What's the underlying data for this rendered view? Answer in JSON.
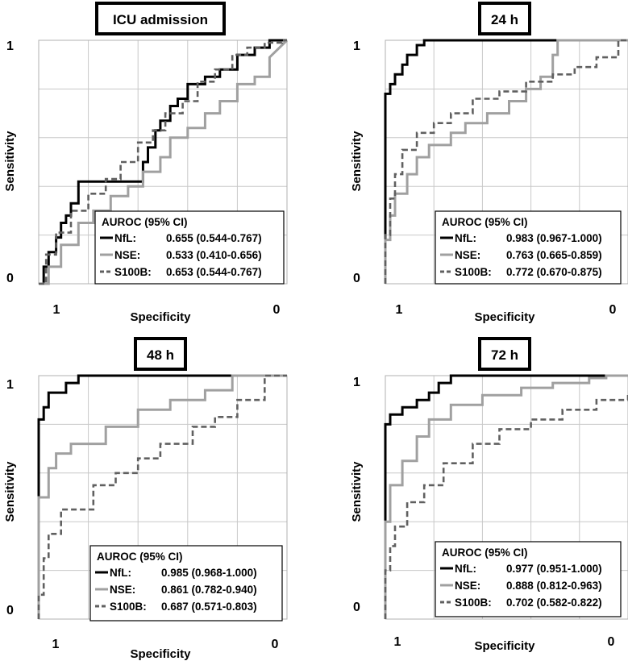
{
  "colors": {
    "nfl": "#000000",
    "nse": "#a0a0a0",
    "s100b": "#606060",
    "grid": "#c8c8c8"
  },
  "chart_data": [
    {
      "type": "line",
      "title": "ICU admission",
      "xlabel": "Specificity",
      "ylabel": "Sensitivity",
      "x_tick_labels": [
        "1",
        "0"
      ],
      "y_tick_labels": [
        "1",
        "0"
      ],
      "xlim": [
        1,
        0
      ],
      "ylim": [
        0,
        1
      ],
      "legend": {
        "title": "AUROC (95% CI)",
        "entries": [
          {
            "label": "NfL:",
            "value": "0.655 (0.544-0.767)"
          },
          {
            "label": "NSE:",
            "value": "0.533 (0.410-0.656)"
          },
          {
            "label": "S100B:",
            "value": "0.653 (0.544-0.767)"
          }
        ]
      },
      "series": [
        {
          "name": "NfL",
          "style": "solid",
          "fpr": [
            0,
            0.02,
            0.02,
            0.04,
            0.04,
            0.07,
            0.07,
            0.09,
            0.09,
            0.11,
            0.11,
            0.13,
            0.13,
            0.16,
            0.16,
            0.42,
            0.42,
            0.44,
            0.44,
            0.47,
            0.47,
            0.49,
            0.49,
            0.53,
            0.53,
            0.56,
            0.56,
            0.6,
            0.6,
            0.67,
            0.67,
            0.73,
            0.73,
            0.8,
            0.8,
            0.87,
            0.87,
            0.93,
            0.93,
            1.0
          ],
          "tpr": [
            0,
            0,
            0.07,
            0.07,
            0.13,
            0.13,
            0.19,
            0.19,
            0.25,
            0.25,
            0.28,
            0.28,
            0.33,
            0.33,
            0.42,
            0.42,
            0.5,
            0.5,
            0.56,
            0.56,
            0.63,
            0.63,
            0.67,
            0.67,
            0.73,
            0.73,
            0.76,
            0.76,
            0.82,
            0.82,
            0.85,
            0.85,
            0.88,
            0.88,
            0.94,
            0.94,
            0.97,
            0.97,
            1.0,
            1.0
          ]
        },
        {
          "name": "NSE",
          "style": "solid",
          "fpr": [
            0,
            0.04,
            0.04,
            0.09,
            0.09,
            0.16,
            0.16,
            0.22,
            0.22,
            0.29,
            0.29,
            0.36,
            0.36,
            0.42,
            0.42,
            0.49,
            0.49,
            0.53,
            0.53,
            0.6,
            0.6,
            0.67,
            0.67,
            0.73,
            0.73,
            0.8,
            0.8,
            0.87,
            0.87,
            0.93,
            0.93,
            1.0
          ],
          "tpr": [
            0,
            0,
            0.07,
            0.07,
            0.16,
            0.16,
            0.25,
            0.25,
            0.3,
            0.3,
            0.36,
            0.36,
            0.4,
            0.4,
            0.46,
            0.46,
            0.52,
            0.52,
            0.6,
            0.6,
            0.64,
            0.64,
            0.7,
            0.7,
            0.75,
            0.75,
            0.82,
            0.82,
            0.85,
            0.85,
            0.93,
            1.0
          ]
        },
        {
          "name": "S100B",
          "style": "dashed",
          "fpr": [
            0,
            0.03,
            0.03,
            0.07,
            0.07,
            0.13,
            0.13,
            0.2,
            0.2,
            0.27,
            0.27,
            0.33,
            0.33,
            0.4,
            0.4,
            0.46,
            0.46,
            0.51,
            0.51,
            0.58,
            0.58,
            0.64,
            0.64,
            0.71,
            0.71,
            0.78,
            0.78,
            0.84,
            0.84,
            0.91,
            0.91,
            0.98,
            0.98,
            1.0
          ],
          "tpr": [
            0,
            0,
            0.12,
            0.12,
            0.21,
            0.21,
            0.3,
            0.3,
            0.37,
            0.37,
            0.43,
            0.43,
            0.5,
            0.5,
            0.58,
            0.58,
            0.63,
            0.63,
            0.7,
            0.7,
            0.75,
            0.75,
            0.83,
            0.83,
            0.88,
            0.88,
            0.94,
            0.94,
            0.97,
            0.97,
            0.99,
            0.99,
            1.0,
            1.0
          ]
        }
      ]
    },
    {
      "type": "line",
      "title": "24 h",
      "xlabel": "Specificity",
      "ylabel": "Sensitivity",
      "x_tick_labels": [
        "1",
        "0"
      ],
      "y_tick_labels": [
        "1",
        "0"
      ],
      "xlim": [
        1,
        0
      ],
      "ylim": [
        0,
        1
      ],
      "legend": {
        "title": "AUROC (95% CI)",
        "entries": [
          {
            "label": "NfL:",
            "value": "0.983 (0.967-1.000)"
          },
          {
            "label": "NSE:",
            "value": "0.763 (0.665-0.859)"
          },
          {
            "label": "S100B:",
            "value": "0.772 (0.670-0.875)"
          }
        ]
      },
      "series": [
        {
          "name": "NfL",
          "style": "solid",
          "fpr": [
            0,
            0,
            0.02,
            0.02,
            0.04,
            0.04,
            0.07,
            0.07,
            0.09,
            0.09,
            0.13,
            0.13,
            0.16,
            0.16,
            1.0
          ],
          "tpr": [
            0,
            0.78,
            0.78,
            0.82,
            0.82,
            0.86,
            0.86,
            0.9,
            0.9,
            0.94,
            0.94,
            0.98,
            0.98,
            1.0,
            1.0
          ]
        },
        {
          "name": "NSE",
          "style": "solid",
          "fpr": [
            0,
            0,
            0.02,
            0.02,
            0.04,
            0.04,
            0.09,
            0.09,
            0.13,
            0.13,
            0.18,
            0.18,
            0.27,
            0.27,
            0.33,
            0.33,
            0.42,
            0.42,
            0.51,
            0.51,
            0.58,
            0.58,
            0.64,
            0.64,
            0.69,
            0.69,
            0.71,
            0.71,
            1.0
          ],
          "tpr": [
            0,
            0.18,
            0.18,
            0.28,
            0.28,
            0.37,
            0.37,
            0.45,
            0.45,
            0.52,
            0.52,
            0.57,
            0.57,
            0.62,
            0.62,
            0.66,
            0.66,
            0.7,
            0.7,
            0.75,
            0.75,
            0.8,
            0.8,
            0.85,
            0.85,
            0.94,
            0.94,
            1.0,
            1.0
          ]
        },
        {
          "name": "S100B",
          "style": "dashed",
          "fpr": [
            0,
            0,
            0.02,
            0.02,
            0.04,
            0.04,
            0.07,
            0.07,
            0.13,
            0.13,
            0.2,
            0.2,
            0.27,
            0.27,
            0.36,
            0.36,
            0.47,
            0.47,
            0.58,
            0.58,
            0.69,
            0.69,
            0.78,
            0.78,
            0.87,
            0.87,
            0.96,
            0.96,
            1.0
          ],
          "tpr": [
            0,
            0.2,
            0.2,
            0.35,
            0.35,
            0.45,
            0.45,
            0.55,
            0.55,
            0.62,
            0.62,
            0.66,
            0.66,
            0.7,
            0.7,
            0.76,
            0.76,
            0.79,
            0.79,
            0.83,
            0.83,
            0.86,
            0.86,
            0.89,
            0.89,
            0.93,
            0.93,
            1.0,
            1.0
          ]
        }
      ]
    },
    {
      "type": "line",
      "title": "48 h",
      "xlabel": "Specificity",
      "ylabel": "Sensitivity",
      "x_tick_labels": [
        "1",
        "0"
      ],
      "y_tick_labels": [
        "1",
        "0"
      ],
      "xlim": [
        1,
        0
      ],
      "ylim": [
        0,
        1
      ],
      "legend": {
        "title": "AUROC (95% CI)",
        "entries": [
          {
            "label": "NfL:",
            "value": "0.985 (0.968-1.000)"
          },
          {
            "label": "NSE:",
            "value": "0.861 (0.782-0.940)"
          },
          {
            "label": "S100B:",
            "value": "0.687 (0.571-0.803)"
          }
        ]
      },
      "series": [
        {
          "name": "NfL",
          "style": "solid",
          "fpr": [
            0,
            0,
            0.02,
            0.02,
            0.04,
            0.04,
            0.11,
            0.11,
            0.16,
            0.16,
            1.0
          ],
          "tpr": [
            0,
            0.82,
            0.82,
            0.87,
            0.87,
            0.93,
            0.93,
            0.97,
            0.97,
            1.0,
            1.0
          ]
        },
        {
          "name": "NSE",
          "style": "solid",
          "fpr": [
            0,
            0,
            0.04,
            0.04,
            0.07,
            0.07,
            0.13,
            0.13,
            0.27,
            0.27,
            0.4,
            0.4,
            0.53,
            0.53,
            0.67,
            0.67,
            0.78,
            0.78,
            1.0
          ],
          "tpr": [
            0,
            0.5,
            0.5,
            0.62,
            0.62,
            0.68,
            0.68,
            0.72,
            0.72,
            0.79,
            0.79,
            0.86,
            0.86,
            0.9,
            0.9,
            0.94,
            0.94,
            1.0,
            1.0
          ]
        },
        {
          "name": "S100B",
          "style": "dashed",
          "fpr": [
            0,
            0,
            0.02,
            0.02,
            0.04,
            0.04,
            0.09,
            0.09,
            0.22,
            0.22,
            0.31,
            0.31,
            0.4,
            0.4,
            0.49,
            0.49,
            0.62,
            0.62,
            0.71,
            0.71,
            0.8,
            0.8,
            0.91,
            0.91,
            1.0
          ],
          "tpr": [
            0,
            0.1,
            0.1,
            0.25,
            0.25,
            0.35,
            0.35,
            0.45,
            0.45,
            0.55,
            0.55,
            0.6,
            0.6,
            0.66,
            0.66,
            0.72,
            0.72,
            0.79,
            0.79,
            0.83,
            0.83,
            0.9,
            0.9,
            1.0,
            1.0
          ]
        }
      ]
    },
    {
      "type": "line",
      "title": "72 h",
      "xlabel": "Specificity",
      "ylabel": "Sensitivity",
      "x_tick_labels": [
        "1",
        "0"
      ],
      "y_tick_labels": [
        "1",
        "0"
      ],
      "xlim": [
        1,
        0
      ],
      "ylim": [
        0,
        1
      ],
      "legend": {
        "title": "AUROC (95% CI)",
        "entries": [
          {
            "label": "NfL:",
            "value": "0.977 (0.951-1.000)"
          },
          {
            "label": "NSE:",
            "value": "0.888 (0.812-0.963)"
          },
          {
            "label": "S100B:",
            "value": "0.702 (0.582-0.822)"
          }
        ]
      },
      "series": [
        {
          "name": "NfL",
          "style": "solid",
          "fpr": [
            0,
            0,
            0.02,
            0.02,
            0.07,
            0.07,
            0.13,
            0.13,
            0.18,
            0.18,
            0.22,
            0.22,
            0.27,
            0.27,
            0.36,
            0.36,
            1.0
          ],
          "tpr": [
            0,
            0.8,
            0.8,
            0.84,
            0.84,
            0.87,
            0.87,
            0.9,
            0.9,
            0.93,
            0.93,
            0.97,
            0.97,
            1.0,
            1.0,
            1.0,
            1.0
          ]
        },
        {
          "name": "NSE",
          "style": "solid",
          "fpr": [
            0,
            0,
            0.02,
            0.02,
            0.07,
            0.07,
            0.13,
            0.13,
            0.18,
            0.18,
            0.27,
            0.27,
            0.4,
            0.4,
            0.56,
            0.56,
            0.69,
            0.69,
            0.84,
            0.84,
            0.91,
            0.91,
            1.0
          ],
          "tpr": [
            0,
            0.4,
            0.4,
            0.55,
            0.55,
            0.65,
            0.65,
            0.75,
            0.75,
            0.82,
            0.82,
            0.88,
            0.88,
            0.92,
            0.92,
            0.95,
            0.95,
            0.97,
            0.97,
            0.99,
            0.99,
            1.0,
            1.0
          ]
        },
        {
          "name": "S100B",
          "style": "dashed",
          "fpr": [
            0,
            0,
            0.02,
            0.02,
            0.04,
            0.04,
            0.09,
            0.09,
            0.16,
            0.16,
            0.24,
            0.24,
            0.36,
            0.36,
            0.47,
            0.47,
            0.6,
            0.6,
            0.73,
            0.73,
            0.87,
            0.87,
            1.0,
            1.0
          ],
          "tpr": [
            0,
            0.2,
            0.2,
            0.3,
            0.3,
            0.38,
            0.38,
            0.48,
            0.48,
            0.55,
            0.55,
            0.64,
            0.64,
            0.72,
            0.72,
            0.78,
            0.78,
            0.82,
            0.82,
            0.86,
            0.86,
            0.9,
            0.9,
            0.93
          ]
        }
      ]
    }
  ]
}
